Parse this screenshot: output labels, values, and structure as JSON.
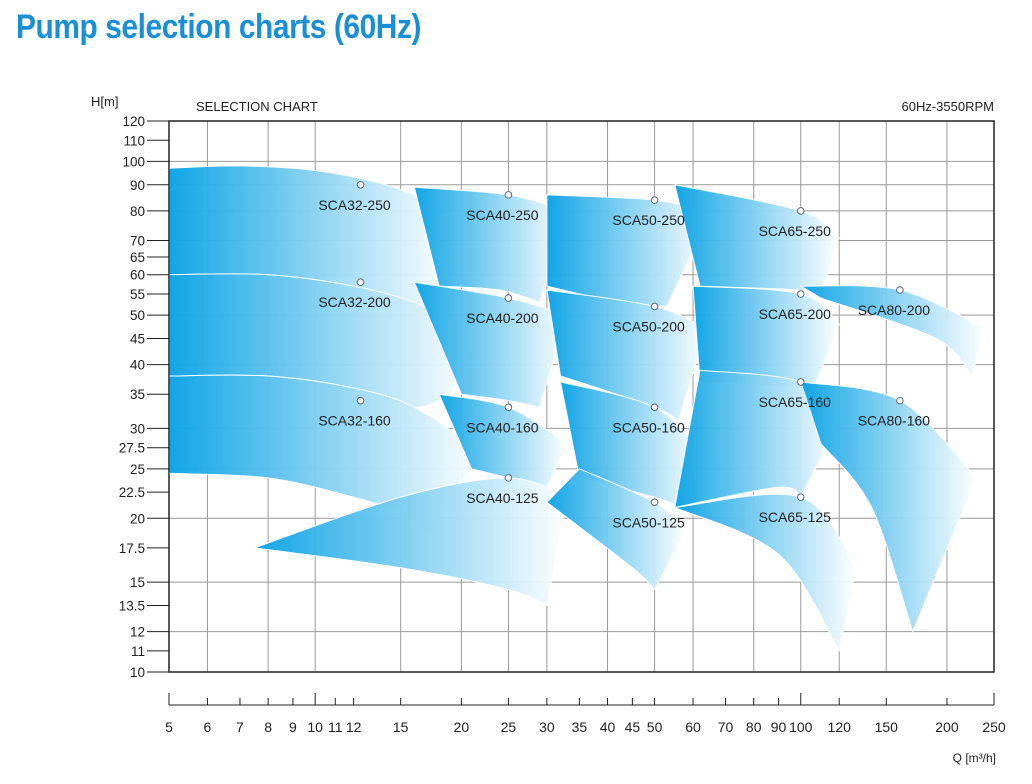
{
  "page_title": "Pump selection charts (60Hz)",
  "chart_data": {
    "type": "area",
    "title": "SELECTION CHART",
    "subtitle": "60Hz-3550RPM",
    "xlabel": "Q [m³/h]",
    "ylabel": "H[m]",
    "xscale": "log",
    "yscale": "log",
    "xlim": [
      5,
      250
    ],
    "ylim": [
      10,
      120
    ],
    "grid": true,
    "x_ticks": [
      5,
      6,
      7,
      8,
      9,
      10,
      11,
      12,
      15,
      20,
      25,
      30,
      35,
      40,
      45,
      50,
      60,
      70,
      80,
      90,
      100,
      120,
      150,
      200,
      250
    ],
    "x_tick_labels": [
      "5",
      "6",
      "7",
      "8",
      "9",
      "10",
      "11",
      "12",
      "15",
      "20",
      "25",
      "30",
      "35",
      "40",
      "45",
      "50",
      "60",
      "70",
      "80",
      "90",
      "100",
      "120",
      "150",
      "200",
      "250"
    ],
    "y_ticks": [
      10,
      11,
      12,
      13.5,
      15,
      17.5,
      20,
      22.5,
      25,
      27.5,
      30,
      35,
      40,
      45,
      50,
      55,
      60,
      65,
      70,
      80,
      90,
      100,
      110,
      120
    ],
    "y_tick_labels": [
      "10",
      "11",
      "12",
      "13.5",
      "15",
      "17.5",
      "20",
      "22.5",
      "25",
      "27.5",
      "30",
      "35",
      "40",
      "45",
      "50",
      "55",
      "60",
      "65",
      "70",
      "80",
      "90",
      "100",
      "110",
      "120"
    ],
    "colors": {
      "title_blue": "#1a8fd6",
      "zone_dark": "#0aa3e6",
      "zone_light": "#ffffff",
      "grid": "#999999"
    },
    "series": [
      {
        "name": "SCA32-250",
        "bep": [
          12.4,
          90
        ],
        "top": [
          [
            5,
            97
          ],
          [
            7,
            98
          ],
          [
            10,
            96
          ],
          [
            14,
            90
          ],
          [
            18,
            82
          ]
        ],
        "bottom": [
          [
            5,
            60
          ],
          [
            8,
            60
          ],
          [
            12,
            57
          ],
          [
            17,
            52
          ],
          [
            19,
            54
          ]
        ]
      },
      {
        "name": "SCA32-200",
        "bep": [
          12.4,
          58
        ],
        "top": [
          [
            5,
            60
          ],
          [
            8,
            60
          ],
          [
            12,
            57
          ],
          [
            16,
            53
          ],
          [
            21,
            47
          ]
        ],
        "bottom": [
          [
            5,
            38
          ],
          [
            8,
            38
          ],
          [
            12,
            36
          ],
          [
            16,
            33
          ],
          [
            19,
            35
          ]
        ]
      },
      {
        "name": "SCA32-160",
        "bep": [
          12.4,
          34
        ],
        "top": [
          [
            5,
            38
          ],
          [
            8,
            38
          ],
          [
            12,
            36
          ],
          [
            16,
            33
          ],
          [
            22,
            27
          ]
        ],
        "bottom": [
          [
            5,
            24.5
          ],
          [
            8,
            24
          ],
          [
            12,
            22
          ],
          [
            15,
            20.5
          ],
          [
            17,
            18.5
          ]
        ]
      },
      {
        "name": "SCA40-250",
        "bep": [
          25,
          86
        ],
        "top": [
          [
            16,
            89
          ],
          [
            25,
            86
          ],
          [
            33,
            80
          ]
        ],
        "bottom": [
          [
            18,
            57
          ],
          [
            24,
            56
          ],
          [
            29,
            53
          ]
        ]
      },
      {
        "name": "SCA40-200",
        "bep": [
          25,
          54
        ],
        "top": [
          [
            16,
            58
          ],
          [
            25,
            54
          ],
          [
            33,
            50
          ]
        ],
        "bottom": [
          [
            20,
            35
          ],
          [
            25,
            34
          ],
          [
            29,
            33
          ]
        ]
      },
      {
        "name": "SCA40-160",
        "bep": [
          25,
          33
        ],
        "top": [
          [
            18,
            35
          ],
          [
            25,
            33
          ],
          [
            33,
            28
          ]
        ],
        "bottom": [
          [
            21,
            25
          ],
          [
            25,
            24
          ],
          [
            30,
            23
          ]
        ]
      },
      {
        "name": "SCA40-125",
        "bep": [
          25,
          24
        ],
        "top": [
          [
            7.5,
            17.5
          ],
          [
            15,
            22
          ],
          [
            25,
            24
          ],
          [
            33,
            22
          ]
        ],
        "bottom": [
          [
            7.5,
            17.5
          ],
          [
            15,
            16
          ],
          [
            25,
            14.5
          ],
          [
            30,
            13.5
          ]
        ]
      },
      {
        "name": "SCA50-250",
        "bep": [
          50,
          84
        ],
        "top": [
          [
            30,
            86
          ],
          [
            50,
            84
          ],
          [
            65,
            79
          ]
        ],
        "bottom": [
          [
            30,
            57
          ],
          [
            42,
            53
          ],
          [
            53,
            52
          ]
        ]
      },
      {
        "name": "SCA50-200",
        "bep": [
          50,
          52
        ],
        "top": [
          [
            30,
            56
          ],
          [
            50,
            52
          ],
          [
            64,
            47
          ]
        ],
        "bottom": [
          [
            32,
            38
          ],
          [
            50,
            33
          ],
          [
            56,
            31
          ]
        ]
      },
      {
        "name": "SCA50-160",
        "bep": [
          50,
          33
        ],
        "top": [
          [
            32,
            37
          ],
          [
            50,
            33
          ],
          [
            62,
            27
          ]
        ],
        "bottom": [
          [
            35,
            24
          ],
          [
            50,
            22
          ],
          [
            57,
            21
          ]
        ]
      },
      {
        "name": "SCA50-125",
        "bep": [
          50,
          21.5
        ],
        "top": [
          [
            35,
            25
          ],
          [
            50,
            21.5
          ],
          [
            58,
            19
          ]
        ],
        "bottom": [
          [
            30,
            21.5
          ],
          [
            45,
            16
          ],
          [
            50,
            14.5
          ]
        ]
      },
      {
        "name": "SCA65-250",
        "bep": [
          100,
          80
        ],
        "top": [
          [
            55,
            90
          ],
          [
            100,
            80
          ],
          [
            120,
            71
          ]
        ],
        "bottom": [
          [
            62,
            57
          ],
          [
            100,
            56
          ],
          [
            110,
            55
          ]
        ]
      },
      {
        "name": "SCA65-200",
        "bep": [
          100,
          55
        ],
        "top": [
          [
            60,
            57
          ],
          [
            100,
            55
          ],
          [
            120,
            48
          ]
        ],
        "bottom": [
          [
            62,
            37
          ],
          [
            100,
            36
          ],
          [
            105,
            35
          ]
        ]
      },
      {
        "name": "SCA65-160",
        "bep": [
          100,
          37
        ],
        "top": [
          [
            62,
            39
          ],
          [
            100,
            37
          ],
          [
            120,
            31
          ]
        ],
        "bottom": [
          [
            55,
            21
          ],
          [
            90,
            23
          ],
          [
            100,
            22
          ]
        ]
      },
      {
        "name": "SCA65-125",
        "bep": [
          100,
          22
        ],
        "top": [
          [
            55,
            21
          ],
          [
            100,
            22
          ],
          [
            130,
            16
          ]
        ],
        "bottom": [
          [
            55,
            21
          ],
          [
            90,
            17
          ],
          [
            120,
            11
          ]
        ]
      },
      {
        "name": "SCA80-200",
        "bep": [
          160,
          56
        ],
        "top": [
          [
            100,
            57
          ],
          [
            160,
            56
          ],
          [
            240,
            47
          ]
        ],
        "bottom": [
          [
            110,
            54
          ],
          [
            190,
            45
          ],
          [
            225,
            38
          ]
        ]
      },
      {
        "name": "SCA80-160",
        "bep": [
          160,
          34
        ],
        "top": [
          [
            100,
            37
          ],
          [
            160,
            34
          ],
          [
            230,
            24
          ]
        ],
        "bottom": [
          [
            110,
            28
          ],
          [
            140,
            21
          ],
          [
            170,
            12
          ]
        ]
      }
    ]
  }
}
